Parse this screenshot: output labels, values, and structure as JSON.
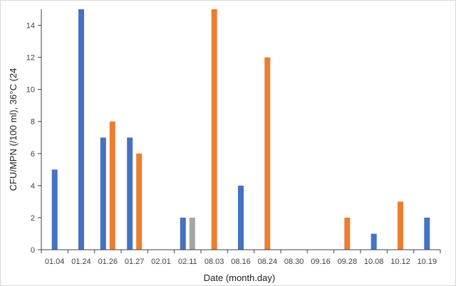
{
  "chart_data": {
    "type": "bar",
    "xlabel": "Date (month.day)",
    "ylabel": "CFU/MPN (/100 ml), 36°C (24",
    "categories": [
      "01.04",
      "01.24",
      "01.26",
      "01.27",
      "02.01",
      "02.11",
      "08.03",
      "08.16",
      "08.24",
      "08.30",
      "09.16",
      "09.28",
      "10.08",
      "10.12",
      "10.19"
    ],
    "ylim": [
      0,
      15
    ],
    "yticks": [
      0,
      2,
      4,
      6,
      8,
      10,
      12,
      14
    ],
    "grid": false,
    "legend": "none",
    "series": [
      {
        "color": "#4472c4",
        "values": [
          5,
          15,
          7,
          7,
          null,
          2,
          null,
          4,
          null,
          null,
          null,
          null,
          1,
          null,
          2
        ]
      },
      {
        "color": "#ed7d31",
        "values": [
          null,
          null,
          8,
          6,
          null,
          null,
          15,
          null,
          12,
          null,
          null,
          2,
          null,
          3,
          null
        ]
      },
      {
        "color": "#a5a5a5",
        "values": [
          null,
          null,
          null,
          null,
          null,
          2,
          null,
          null,
          null,
          null,
          null,
          null,
          null,
          null,
          null
        ]
      }
    ]
  }
}
